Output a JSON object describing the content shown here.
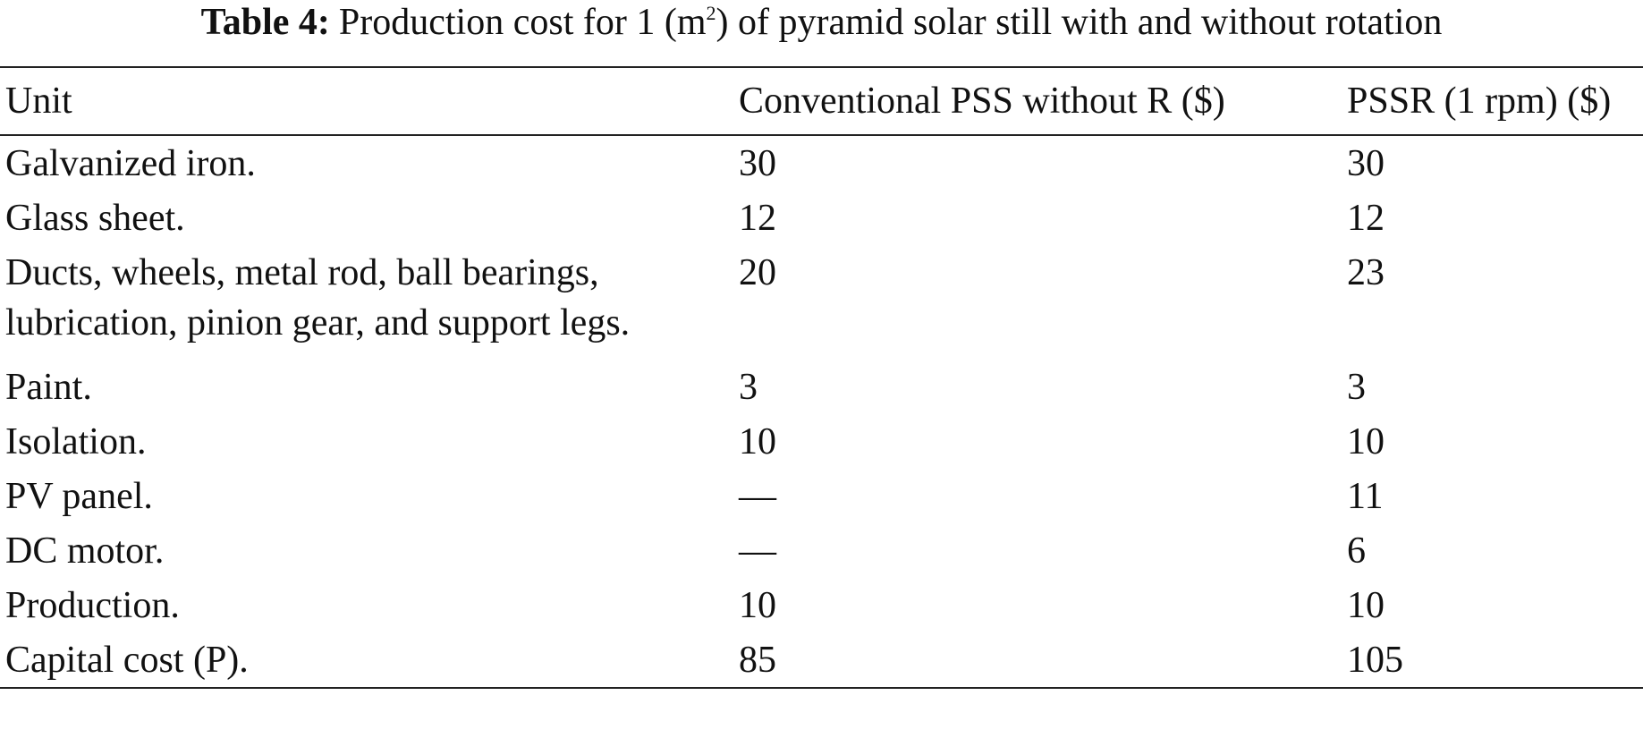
{
  "caption": {
    "label": "Table 4:",
    "text_before": "Production cost for 1 (m",
    "superscript": "2",
    "text_after": ") of pyramid solar still with and without rotation"
  },
  "table": {
    "columns": [
      "Unit",
      "Conventional PSS without R ($)",
      "PSSR (1 rpm) ($)"
    ],
    "rows": [
      [
        "Galvanized iron.",
        "30",
        "30"
      ],
      [
        "Glass sheet.",
        "12",
        "12"
      ],
      [
        "Ducts, wheels, metal rod, ball bearings, lubrication, pinion gear, and support legs.",
        "20",
        "23"
      ],
      [
        "Paint.",
        "3",
        "3"
      ],
      [
        "Isolation.",
        "10",
        "10"
      ],
      [
        "PV panel.",
        "—",
        "11"
      ],
      [
        "DC motor.",
        "—",
        "6"
      ],
      [
        "Production.",
        "10",
        "10"
      ],
      [
        "Capital cost (P).",
        "85",
        "105"
      ]
    ]
  }
}
